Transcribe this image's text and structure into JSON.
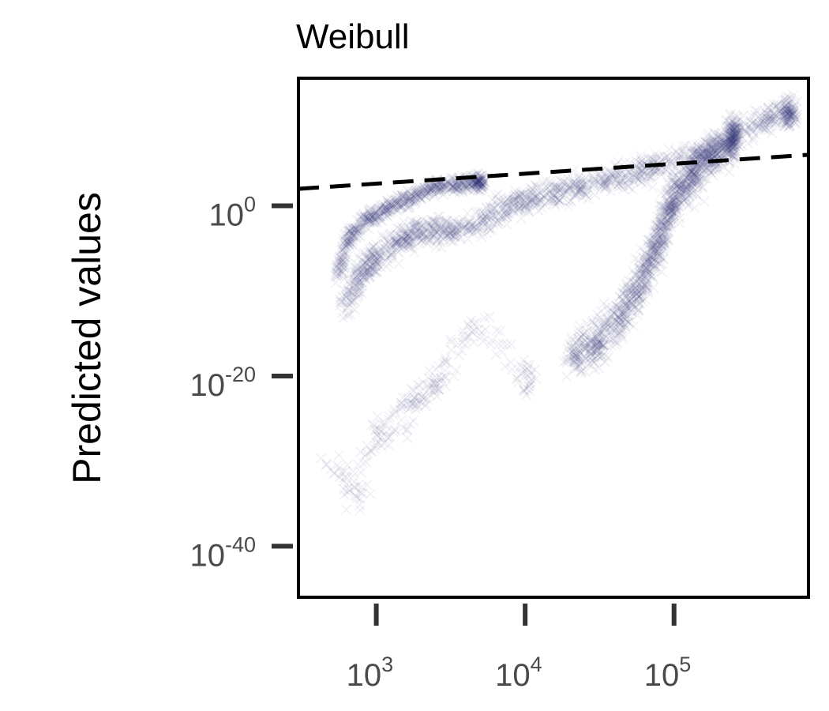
{
  "chart_data": {
    "type": "scatter",
    "title": "Weibull",
    "xlabel": "",
    "ylabel": "Predicted values",
    "xscale": "log",
    "yscale": "log",
    "xlim": [
      300,
      800000
    ],
    "ylim": [
      1e-46,
      1000000000000000.0
    ],
    "x_ticks": [
      {
        "value": 1000,
        "base": "10",
        "exp": "3"
      },
      {
        "value": 10000,
        "base": "10",
        "exp": "4"
      },
      {
        "value": 100000,
        "base": "10",
        "exp": "5"
      }
    ],
    "y_ticks": [
      {
        "value": 1,
        "base": "10",
        "exp": "0"
      },
      {
        "value": 1e-20,
        "base": "10",
        "exp": "-20"
      },
      {
        "value": 1e-40,
        "base": "10",
        "exp": "-40"
      }
    ],
    "marker": "x",
    "marker_color": "#2b2d6b",
    "marker_alpha": 0.07,
    "grid": false,
    "reference_line": {
      "style": "dashed",
      "color": "#000000",
      "x": [
        300,
        800000
      ],
      "y": [
        100,
        1000000.0
      ]
    },
    "series": [
      {
        "x": [
          550,
          650,
          800,
          1000,
          1300,
          1700,
          2300,
          3000,
          4000,
          5000
        ],
        "y": [
          1e-08,
          0.0001,
          0.01,
          0.1,
          1,
          10,
          100,
          300,
          400,
          600
        ]
      },
      {
        "x": [
          600,
          800,
          1000,
          1500,
          2000,
          3000,
          5000,
          8000,
          12000,
          20000,
          35000,
          60000,
          100000,
          200000,
          400000,
          600000
        ],
        "y": [
          1e-12,
          1e-08,
          1e-06,
          0.0001,
          0.001,
          0.001,
          0.01,
          1,
          10,
          100,
          1000,
          10000,
          100000.0,
          10000000.0,
          10000000000.0,
          100000000000.0
        ]
      },
      {
        "x": [
          20000,
          30000,
          45000,
          60000,
          75000,
          90000,
          110000,
          140000,
          180000,
          250000
        ],
        "y": [
          1e-18,
          1e-16,
          1e-13,
          1e-09,
          1e-05,
          0.1,
          100,
          10000.0,
          1000000.0,
          100000000.0
        ]
      },
      {
        "x": [
          500,
          700,
          900,
          1200,
          1600,
          2000,
          2500,
          3000,
          5000,
          10000
        ],
        "y": [
          1e-30,
          1e-35,
          1e-28,
          1e-26,
          1e-24,
          1e-22,
          1e-21,
          1e-18,
          1e-14,
          1e-20
        ]
      }
    ]
  }
}
